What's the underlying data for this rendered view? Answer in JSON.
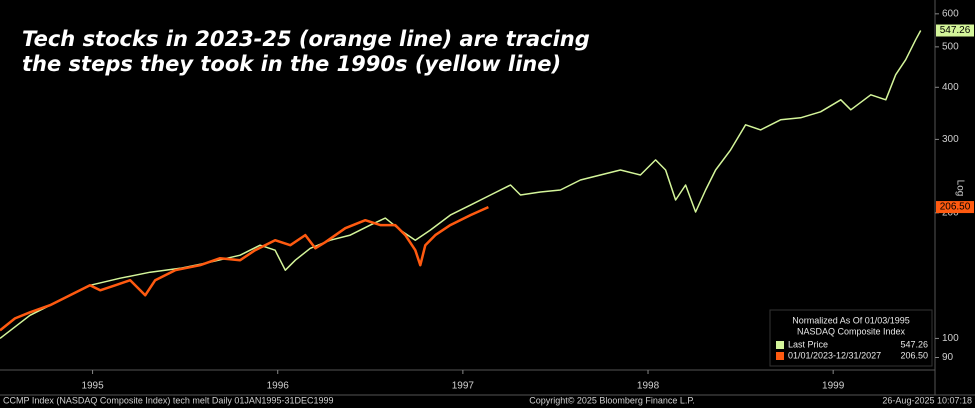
{
  "chart_data": {
    "type": "line",
    "title": [
      "Tech stocks in 2023-25 (orange line) are tracing",
      "the steps they took in the 1990s (yellow line)"
    ],
    "y_axis_label": "Log",
    "log_scale": true,
    "grid": false,
    "legend_position": "bottom-right",
    "legend_title": [
      "Normalized As Of 01/03/1995",
      "NASDAQ Composite Index"
    ],
    "xlim": [
      1995,
      2000.05
    ],
    "xticks": [
      {
        "value": 1995.5,
        "label": "1995"
      },
      {
        "value": 1996.5,
        "label": "1996"
      },
      {
        "value": 1997.5,
        "label": "1997"
      },
      {
        "value": 1998.5,
        "label": "1998"
      },
      {
        "value": 1999.5,
        "label": "1999"
      }
    ],
    "ylim": [
      84,
      630
    ],
    "yticks": [
      90,
      100,
      200,
      300,
      400,
      500,
      600
    ],
    "footer": [
      "CCMP Index (NASDAQ Composite Index) tech melt  Daily 01JAN1995-31DEC1999",
      "Copyright© 2025 Bloomberg Finance L.P.",
      "26-Aug-2025 10:07:18"
    ],
    "series": [
      {
        "name": "Last Price",
        "color": "#d4f59a",
        "value_label": "547.26",
        "x": [
          1995.0,
          1995.162,
          1995.324,
          1995.486,
          1995.649,
          1995.811,
          1995.973,
          1996.135,
          1996.297,
          1996.405,
          1996.486,
          1996.541,
          1996.595,
          1996.676,
          1996.784,
          1996.892,
          1997.0,
          1997.081,
          1997.162,
          1997.243,
          1997.324,
          1997.432,
          1997.541,
          1997.649,
          1997.757,
          1997.811,
          1997.919,
          1998.027,
          1998.135,
          1998.243,
          1998.351,
          1998.459,
          1998.541,
          1998.595,
          1998.649,
          1998.703,
          1998.757,
          1998.811,
          1998.865,
          1998.946,
          1999.027,
          1999.108,
          1999.216,
          1999.324,
          1999.432,
          1999.541,
          1999.595,
          1999.703,
          1999.784,
          1999.838,
          1999.892,
          1999.946,
          1999.973
        ],
        "values": [
          100,
          113.6,
          123.4,
          134.1,
          139.4,
          144.1,
          147.3,
          152.3,
          158.3,
          167.3,
          162.7,
          145.7,
          154.0,
          164.5,
          172.0,
          176.9,
          186.9,
          194.3,
          181.8,
          172.0,
          181.8,
          197.5,
          208.8,
          220.7,
          233.2,
          220.7,
          224.4,
          226.9,
          239.8,
          246.5,
          253.4,
          246.5,
          267.9,
          253.4,
          214.7,
          233.2,
          200.9,
          226.9,
          253.4,
          283.1,
          325.1,
          316.2,
          334.2,
          338.0,
          349.4,
          373.4,
          353.3,
          383.8,
          373.4,
          428.8,
          465.9,
          520.3,
          547.26
        ]
      },
      {
        "name": "01/01/2023-12/31/2027",
        "color": "#ff5a10",
        "value_label": "206.50",
        "x": [
          1995.0,
          1995.081,
          1995.162,
          1995.27,
          1995.378,
          1995.486,
          1995.541,
          1995.622,
          1995.703,
          1995.784,
          1995.838,
          1995.946,
          1996.081,
          1996.189,
          1996.297,
          1996.378,
          1996.486,
          1996.568,
          1996.649,
          1996.703,
          1996.757,
          1996.865,
          1996.973,
          1997.054,
          1997.135,
          1997.189,
          1997.243,
          1997.27,
          1997.297,
          1997.351,
          1997.432,
          1997.541,
          1997.638
        ],
        "values": [
          104.5,
          111.7,
          115.5,
          120.1,
          126.9,
          134.1,
          130.4,
          134.1,
          137.9,
          126.9,
          137.9,
          145.7,
          149.8,
          155.7,
          154.0,
          162.7,
          172.0,
          167.3,
          176.9,
          164.5,
          170.1,
          183.8,
          192.1,
          186.9,
          186.9,
          176.9,
          162.7,
          149.8,
          167.3,
          176.9,
          186.9,
          197.5,
          206.5
        ]
      }
    ]
  }
}
